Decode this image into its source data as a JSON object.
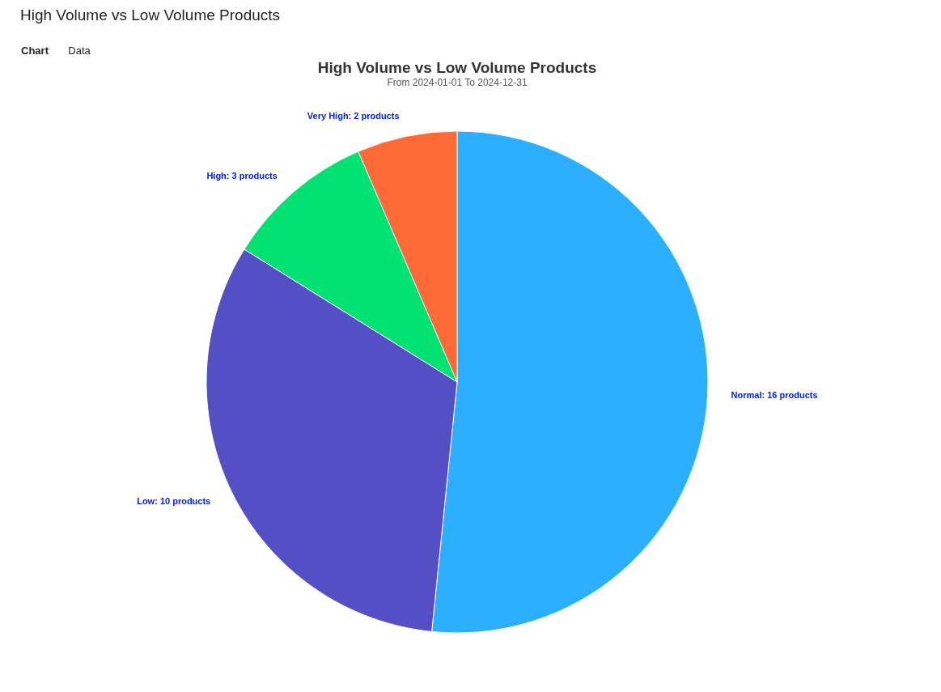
{
  "chart_data": {
    "type": "pie",
    "title": "High Volume vs Low Volume Products",
    "subtitle": "From 2024-01-01 To 2024-12-31",
    "categories": [
      "Normal",
      "Low",
      "High",
      "Very High"
    ],
    "values": [
      16,
      10,
      3,
      2
    ],
    "colors": [
      "#2caffe",
      "#544fc5",
      "#00e272",
      "#fe6a35"
    ],
    "value_labels": [
      "16 products",
      "10 products",
      "3 products",
      "2 products"
    ],
    "annotations": [
      "High Volume vs Low Volume Products",
      "Chart",
      "Data"
    ],
    "legend": false
  }
}
